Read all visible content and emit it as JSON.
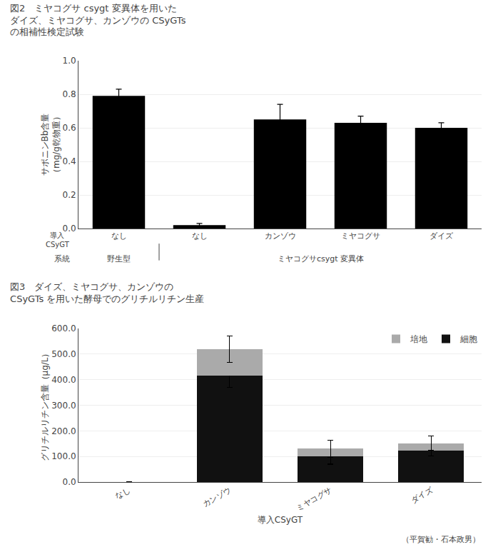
{
  "chart_data": [
    {
      "type": "bar",
      "title": "図2　ミヤコグサ csygt 変異体を用いた\nダイズ、ミヤコグサ、カンゾウの CSyGTs\nの相補性検定試験",
      "categories": [
        "なし",
        "なし",
        "カンゾウ",
        "ミヤコグサ",
        "ダイズ"
      ],
      "category_groups": [
        "野生型",
        "ミヤコグサcsygt 変異体",
        "ミヤコグサcsygt 変異体",
        "ミヤコグサcsygt 変異体",
        "ミヤコグサcsygt 変異体"
      ],
      "category_title": "導入\nCSyGT",
      "group_title": "系統",
      "values": [
        0.79,
        0.02,
        0.65,
        0.63,
        0.6
      ],
      "errors": [
        0.04,
        0.01,
        0.09,
        0.04,
        0.03
      ],
      "color": "#000000",
      "ylabel": "サポニンBb含量\n（mg/g乾物重）",
      "ylim": [
        0,
        1.0
      ],
      "yticks": [
        {
          "value": 0,
          "label": "0.0"
        },
        0.2,
        0.4,
        0.6,
        0.8,
        {
          "value": 1,
          "label": "1.0"
        }
      ],
      "grid": true
    },
    {
      "type": "bar",
      "stacked": true,
      "title": "図3　ダイズ、ミヤコグサ、カンゾウの\nCSyGTs を用いた酵母でのグリチルリチン生産",
      "categories": [
        "なし",
        "カンゾウ",
        "ミヤコグサ",
        "ダイズ"
      ],
      "series": [
        {
          "name": "細胞",
          "color": "#111111",
          "values": [
            0,
            415,
            100,
            122
          ],
          "errors": [
            0,
            45,
            30,
            20
          ]
        },
        {
          "name": "培地",
          "color": "#aaaaaa",
          "values": [
            0,
            105,
            30,
            30
          ],
          "errors": [
            0,
            51.478150704935,
            33.54101966249685,
            26.90724809414742
          ]
        }
      ],
      "xlabel": "導入CSyGT",
      "ylabel": "グリチルリチン含量（μg/L）",
      "ylim": [
        0,
        600
      ],
      "yticks": [
        {
          "value": 0,
          "label": "0.0"
        },
        {
          "value": 100,
          "label": "100.0"
        },
        {
          "value": 200,
          "label": "200.0"
        },
        {
          "value": 300,
          "label": "300.0"
        },
        {
          "value": 400,
          "label": "400.0"
        },
        {
          "value": 500,
          "label": "500.0"
        },
        {
          "value": 600,
          "label": "600.0"
        }
      ],
      "grid": true,
      "legend": "upper right",
      "annotations": [
        "（平賀勧・石本政男）"
      ]
    }
  ]
}
